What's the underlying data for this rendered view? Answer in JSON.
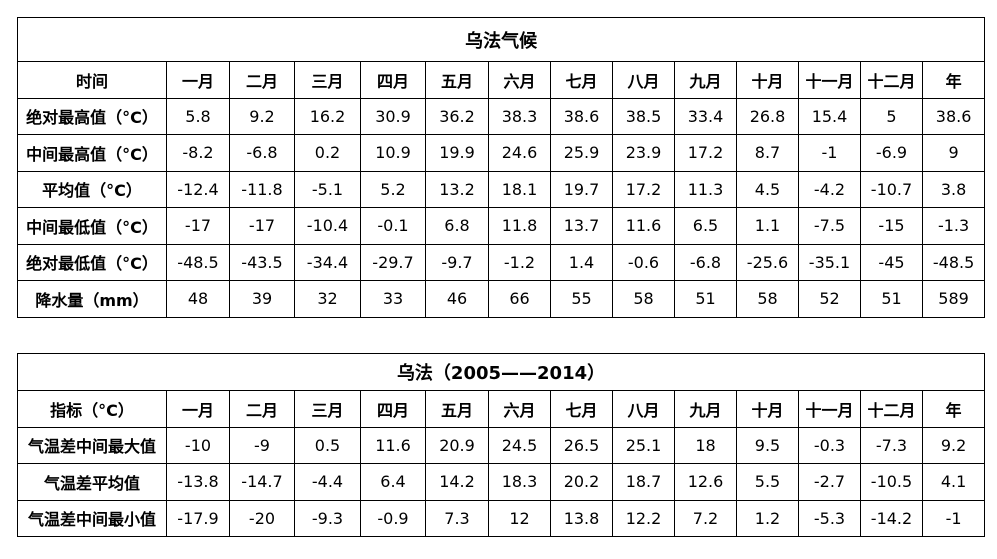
{
  "table1": {
    "title": "乌法气候",
    "header": [
      "时间",
      "一月",
      "二月",
      "三月",
      "四月",
      "五月",
      "六月",
      "七月",
      "八月",
      "九月",
      "十月",
      "十一月",
      "十二月",
      "年"
    ],
    "rows": [
      {
        "label": "绝对最高值（°C）",
        "values": [
          "5.8",
          "9.2",
          "16.2",
          "30.9",
          "36.2",
          "38.3",
          "38.6",
          "38.5",
          "33.4",
          "26.8",
          "15.4",
          "5",
          "38.6"
        ]
      },
      {
        "label": "中间最高值（°C）",
        "values": [
          "-8.2",
          "-6.8",
          "0.2",
          "10.9",
          "19.9",
          "24.6",
          "25.9",
          "23.9",
          "17.2",
          "8.7",
          "-1",
          "-6.9",
          "9"
        ]
      },
      {
        "label": "平均值（°C）",
        "values": [
          "-12.4",
          "-11.8",
          "-5.1",
          "5.2",
          "13.2",
          "18.1",
          "19.7",
          "17.2",
          "11.3",
          "4.5",
          "-4.2",
          "-10.7",
          "3.8"
        ]
      },
      {
        "label": "中间最低值（°C）",
        "values": [
          "-17",
          "-17",
          "-10.4",
          "-0.1",
          "6.8",
          "11.8",
          "13.7",
          "11.6",
          "6.5",
          "1.1",
          "-7.5",
          "-15",
          "-1.3"
        ]
      },
      {
        "label": "绝对最低值（°C）",
        "values": [
          "-48.5",
          "-43.5",
          "-34.4",
          "-29.7",
          "-9.7",
          "-1.2",
          "1.4",
          "-0.6",
          "-6.8",
          "-25.6",
          "-35.1",
          "-45",
          "-48.5"
        ]
      },
      {
        "label": "降水量（mm）",
        "values": [
          "48",
          "39",
          "32",
          "33",
          "46",
          "66",
          "55",
          "58",
          "51",
          "58",
          "52",
          "51",
          "589"
        ]
      }
    ]
  },
  "table2": {
    "title": "乌法（2005——2014）",
    "header": [
      "指标（°C）",
      "一月",
      "二月",
      "三月",
      "四月",
      "五月",
      "六月",
      "七月",
      "八月",
      "九月",
      "十月",
      "十一月",
      "十二月",
      "年"
    ],
    "rows": [
      {
        "label": "气温差中间最大值",
        "values": [
          "-10",
          "-9",
          "0.5",
          "11.6",
          "20.9",
          "24.5",
          "26.5",
          "25.1",
          "18",
          "9.5",
          "-0.3",
          "-7.3",
          "9.2"
        ]
      },
      {
        "label": "气温差平均值",
        "values": [
          "-13.8",
          "-14.7",
          "-4.4",
          "6.4",
          "14.2",
          "18.3",
          "20.2",
          "18.7",
          "12.6",
          "5.5",
          "-2.7",
          "-10.5",
          "4.1"
        ]
      },
      {
        "label": "气温差中间最小值",
        "values": [
          "-17.9",
          "-20",
          "-9.3",
          "-0.9",
          "7.3",
          "12",
          "13.8",
          "12.2",
          "7.2",
          "1.2",
          "-5.3",
          "-14.2",
          "-1"
        ]
      }
    ]
  }
}
